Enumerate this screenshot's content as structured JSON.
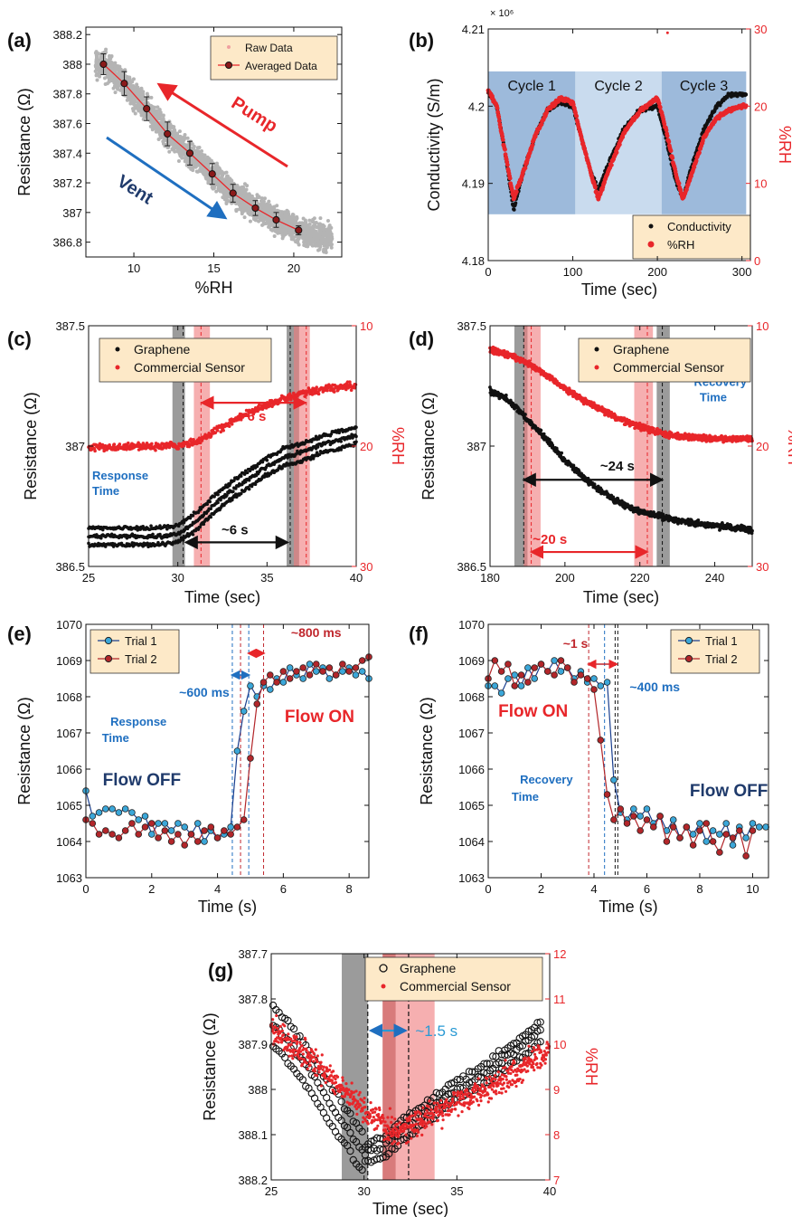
{
  "colors": {
    "black": "#111111",
    "red": "#e8262a",
    "gray": "#b4b4b4",
    "blue": "#1f6fc0",
    "navy": "#1f3a6b",
    "teal": "#2a9ad4",
    "darkred": "#c0272d",
    "legend_bg": "#fde9c8",
    "shade_blue": "#9dbadb",
    "shade_light": "#c9dbee",
    "shade_gray": "#8a8a8a",
    "shade_red": "#f07a7c"
  },
  "chart_data": [
    {
      "panel": "(a)",
      "type": "scatter",
      "xlabel": "%RH",
      "ylabel": "Resistance (Ω)",
      "xlim": [
        7,
        23
      ],
      "ylim": [
        386.7,
        388.25
      ],
      "xticks": [
        10,
        15,
        20
      ],
      "yticks": [
        386.8,
        387,
        387.2,
        387.4,
        387.6,
        387.8,
        388,
        388.2
      ],
      "legend": [
        "Raw Data",
        "Averaged Data"
      ],
      "annotations": [
        "Pump",
        "Vent"
      ],
      "raw_band": {
        "x": [
          7.5,
          22.5
        ],
        "y_center": [
          388.0,
          386.87
        ]
      },
      "series": [
        {
          "name": "Averaged Data",
          "x": [
            8.1,
            9.4,
            10.8,
            12.1,
            13.5,
            14.9,
            16.2,
            17.6,
            18.9,
            20.3
          ],
          "y": [
            388.0,
            387.87,
            387.7,
            387.53,
            387.4,
            387.26,
            387.13,
            387.03,
            386.95,
            386.88
          ],
          "err": [
            0.07,
            0.08,
            0.08,
            0.08,
            0.08,
            0.07,
            0.06,
            0.05,
            0.05,
            0.03
          ]
        }
      ]
    },
    {
      "panel": "(b)",
      "type": "line",
      "xlabel": "Time (sec)",
      "ylabel": "Conductivity (S/m)",
      "y2label": "%RH",
      "xlim": [
        0,
        310
      ],
      "ylim": [
        4.18,
        4.21
      ],
      "y2lim": [
        0,
        30
      ],
      "xticks": [
        0,
        100,
        200,
        300
      ],
      "yticks": [
        4.18,
        4.19,
        4.2,
        4.21
      ],
      "ytick_labels": [
        "4.18",
        "4.19",
        "4.2",
        "4.21"
      ],
      "y2ticks": [
        0,
        10,
        20,
        30
      ],
      "multiplier": "× 10⁶",
      "cycles": [
        "Cycle 1",
        "Cycle 2",
        "Cycle 3"
      ],
      "legend": [
        "Conductivity",
        "%RH"
      ],
      "series": [
        {
          "name": "Conductivity",
          "x": [
            0,
            10,
            20,
            30,
            40,
            55,
            70,
            85,
            100,
            110,
            120,
            130,
            140,
            160,
            180,
            200,
            210,
            220,
            230,
            240,
            255,
            270,
            285,
            300
          ],
          "y": [
            4.202,
            4.2,
            4.194,
            4.1865,
            4.191,
            4.196,
            4.1995,
            4.2005,
            4.2,
            4.196,
            4.192,
            4.189,
            4.192,
            4.197,
            4.1995,
            4.2,
            4.196,
            4.191,
            4.188,
            4.192,
            4.197,
            4.2,
            4.2015,
            4.2015
          ]
        },
        {
          "name": "%RH",
          "x": [
            0,
            10,
            20,
            30,
            40,
            55,
            70,
            85,
            100,
            110,
            120,
            130,
            140,
            160,
            180,
            200,
            210,
            220,
            230,
            240,
            255,
            270,
            285,
            300
          ],
          "y": [
            22,
            20,
            14,
            8,
            11,
            16,
            19.5,
            21,
            20.5,
            16,
            12,
            8,
            11,
            16.5,
            19.5,
            21,
            17,
            12,
            8,
            11,
            16,
            18.5,
            19.5,
            20
          ]
        }
      ]
    },
    {
      "panel": "(c)",
      "type": "scatter",
      "xlabel": "Time (sec)",
      "ylabel": "Resistance (Ω)",
      "y2label": "%RH",
      "xlim": [
        25,
        40
      ],
      "ylim": [
        386.5,
        387.5
      ],
      "y2lim": [
        30,
        10
      ],
      "xticks": [
        25,
        30,
        35,
        40
      ],
      "yticks": [
        386.5,
        387,
        387.5
      ],
      "y2ticks": [
        10,
        20,
        30
      ],
      "legend": [
        "Graphene",
        "Commercial Sensor"
      ],
      "annotations": [
        "~6 s",
        "~6 s",
        "Response",
        "Time"
      ],
      "series": [
        {
          "name": "Graphene",
          "x": [
            25,
            27,
            29,
            30,
            31,
            32,
            33,
            34,
            35,
            36,
            37,
            38,
            39,
            40
          ],
          "y": [
            386.64,
            386.64,
            386.64,
            386.65,
            386.7,
            386.77,
            386.83,
            386.88,
            386.93,
            386.97,
            386.99,
            387.02,
            387.04,
            387.06
          ]
        },
        {
          "name": "Commercial Sensor",
          "x": [
            25,
            27,
            29,
            30,
            31,
            32,
            33,
            34,
            35,
            36,
            37,
            38,
            39,
            40
          ],
          "y": [
            20.1,
            20.1,
            20.0,
            20.0,
            19.6,
            18.8,
            18.0,
            17.2,
            16.6,
            16.0,
            15.6,
            15.3,
            15.1,
            15.0
          ]
        }
      ]
    },
    {
      "panel": "(d)",
      "type": "scatter",
      "xlabel": "Time (sec)",
      "ylabel": "Resistance (Ω)",
      "y2label": "%RH",
      "xlim": [
        180,
        250
      ],
      "ylim": [
        386.5,
        387.5
      ],
      "y2lim": [
        30,
        10
      ],
      "xticks": [
        180,
        200,
        220,
        240
      ],
      "yticks": [
        386.5,
        387,
        387.5
      ],
      "y2ticks": [
        10,
        20,
        30
      ],
      "legend": [
        "Graphene",
        "Commercial Sensor"
      ],
      "annotations": [
        "~24 s",
        "~20 s",
        "Recovery",
        "Time"
      ],
      "series": [
        {
          "name": "Graphene",
          "x": [
            180,
            185,
            190,
            195,
            200,
            205,
            210,
            215,
            220,
            225,
            230,
            235,
            240,
            245,
            250
          ],
          "y": [
            387.23,
            387.19,
            387.11,
            387.03,
            386.94,
            386.87,
            386.81,
            386.76,
            386.73,
            386.71,
            386.69,
            386.68,
            386.67,
            386.66,
            386.65
          ]
        },
        {
          "name": "Commercial Sensor",
          "x": [
            180,
            185,
            190,
            195,
            200,
            205,
            210,
            215,
            220,
            225,
            230,
            235,
            240,
            245,
            250
          ],
          "y": [
            12.0,
            12.4,
            13.1,
            14.1,
            15.2,
            16.2,
            17.0,
            17.8,
            18.4,
            18.9,
            19.2,
            19.3,
            19.4,
            19.4,
            19.4
          ]
        }
      ]
    },
    {
      "panel": "(e)",
      "type": "line",
      "xlabel": "Time (s)",
      "ylabel": "Resistance (Ω)",
      "xlim": [
        0,
        8.6
      ],
      "ylim": [
        1063,
        1070
      ],
      "xticks": [
        0,
        2,
        4,
        6,
        8
      ],
      "yticks": [
        1063,
        1064,
        1065,
        1066,
        1067,
        1068,
        1069,
        1070
      ],
      "legend": [
        "Trial 1",
        "Trial 2"
      ],
      "annotations": [
        "~600 ms",
        "~800 ms",
        "Response",
        "Time",
        "Flow OFF",
        "Flow ON"
      ],
      "series": [
        {
          "name": "Trial 1",
          "x": [
            0,
            0.2,
            0.4,
            0.6,
            0.8,
            1.0,
            1.2,
            1.4,
            1.6,
            1.8,
            2.0,
            2.2,
            2.4,
            2.6,
            2.8,
            3.0,
            3.2,
            3.4,
            3.6,
            3.8,
            4.0,
            4.2,
            4.4,
            4.6,
            4.8,
            5.0,
            5.2,
            5.4,
            5.6,
            5.8,
            6.0,
            6.2,
            6.4,
            6.6,
            6.8,
            7.0,
            7.2,
            7.4,
            7.6,
            7.8,
            8.0,
            8.2,
            8.4,
            8.6
          ],
          "y": [
            1065.4,
            1064.7,
            1064.8,
            1064.9,
            1064.9,
            1064.8,
            1064.9,
            1064.8,
            1064.6,
            1064.7,
            1064.2,
            1064.5,
            1064.5,
            1064.3,
            1064.5,
            1064.4,
            1064.2,
            1064.5,
            1064.0,
            1064.3,
            1064.1,
            1064.2,
            1064.4,
            1066.5,
            1067.6,
            1068.3,
            1068.0,
            1068.3,
            1068.2,
            1068.5,
            1068.4,
            1068.8,
            1068.6,
            1068.5,
            1068.9,
            1068.7,
            1068.8,
            1068.5,
            1068.6,
            1068.7,
            1068.8,
            1068.6,
            1068.7,
            1068.5
          ]
        },
        {
          "name": "Trial 2",
          "x": [
            0,
            0.2,
            0.4,
            0.6,
            0.8,
            1.0,
            1.2,
            1.4,
            1.6,
            1.8,
            2.0,
            2.2,
            2.4,
            2.6,
            2.8,
            3.0,
            3.2,
            3.4,
            3.6,
            3.8,
            4.0,
            4.2,
            4.4,
            4.6,
            4.8,
            5.0,
            5.2,
            5.4,
            5.6,
            5.8,
            6.0,
            6.2,
            6.4,
            6.6,
            6.8,
            7.0,
            7.2,
            7.4,
            7.6,
            7.8,
            8.0,
            8.2,
            8.4,
            8.6
          ],
          "y": [
            1064.6,
            1064.5,
            1064.2,
            1064.3,
            1064.2,
            1064.1,
            1064.3,
            1064.5,
            1064.2,
            1064.4,
            1064.5,
            1064.1,
            1064.3,
            1064.0,
            1064.2,
            1063.9,
            1064.2,
            1064.0,
            1064.3,
            1064.4,
            1064.1,
            1064.3,
            1064.2,
            1064.4,
            1064.6,
            1066.3,
            1067.8,
            1068.4,
            1068.6,
            1068.4,
            1068.7,
            1068.5,
            1068.7,
            1068.8,
            1068.6,
            1068.9,
            1068.7,
            1068.8,
            1068.6,
            1068.9,
            1068.7,
            1068.8,
            1069.0,
            1069.1
          ]
        }
      ]
    },
    {
      "panel": "(f)",
      "type": "line",
      "xlabel": "Time (s)",
      "ylabel": "Resistance (Ω)",
      "xlim": [
        0,
        10.6
      ],
      "ylim": [
        1063,
        1070
      ],
      "xticks": [
        0,
        2,
        4,
        6,
        8,
        10
      ],
      "yticks": [
        1063,
        1064,
        1065,
        1066,
        1067,
        1068,
        1069,
        1070
      ],
      "legend": [
        "Trial 1",
        "Trial 2"
      ],
      "annotations": [
        "~1 s",
        "~400 ms",
        "Recovery",
        "Time",
        "Flow ON",
        "Flow OFF"
      ],
      "series": [
        {
          "name": "Trial 1",
          "x": [
            0,
            0.25,
            0.5,
            0.75,
            1.0,
            1.25,
            1.5,
            1.75,
            2.0,
            2.25,
            2.5,
            2.75,
            3.0,
            3.25,
            3.5,
            3.75,
            4.0,
            4.25,
            4.5,
            4.75,
            5.0,
            5.25,
            5.5,
            5.75,
            6.0,
            6.25,
            6.5,
            6.75,
            7.0,
            7.25,
            7.5,
            7.75,
            8.0,
            8.25,
            8.5,
            8.75,
            9.0,
            9.25,
            9.5,
            9.75,
            10.0,
            10.25,
            10.5
          ],
          "y": [
            1068.3,
            1068.3,
            1068.1,
            1068.5,
            1068.6,
            1068.3,
            1068.8,
            1068.5,
            1068.9,
            1068.7,
            1069.0,
            1068.7,
            1068.8,
            1068.5,
            1068.7,
            1068.4,
            1068.5,
            1068.3,
            1068.4,
            1065.7,
            1064.8,
            1064.6,
            1064.9,
            1064.7,
            1064.9,
            1064.5,
            1064.7,
            1064.3,
            1064.6,
            1064.1,
            1064.4,
            1064.2,
            1064.5,
            1064.0,
            1064.3,
            1064.2,
            1064.5,
            1063.9,
            1064.4,
            1064.1,
            1064.5,
            1064.4,
            1064.4
          ]
        },
        {
          "name": "Trial 2",
          "x": [
            0,
            0.25,
            0.5,
            0.75,
            1.0,
            1.25,
            1.5,
            1.75,
            2.0,
            2.25,
            2.5,
            2.75,
            3.0,
            3.25,
            3.5,
            3.75,
            4.0,
            4.25,
            4.5,
            4.75,
            5.0,
            5.25,
            5.5,
            5.75,
            6.0,
            6.25,
            6.5,
            6.75,
            7.0,
            7.25,
            7.5,
            7.75,
            8.0,
            8.25,
            8.5,
            8.75,
            9.0,
            9.25,
            9.5,
            9.75,
            10.0
          ],
          "y": [
            1068.5,
            1069.0,
            1068.7,
            1068.9,
            1068.3,
            1068.6,
            1068.4,
            1068.8,
            1068.9,
            1068.7,
            1068.6,
            1069.0,
            1068.8,
            1068.4,
            1068.6,
            1068.5,
            1068.2,
            1066.8,
            1065.3,
            1064.6,
            1064.9,
            1064.5,
            1064.7,
            1064.3,
            1064.6,
            1064.4,
            1064.7,
            1064.0,
            1064.4,
            1064.1,
            1064.4,
            1063.9,
            1064.3,
            1064.5,
            1064.0,
            1063.7,
            1064.2,
            1064.1,
            1064.3,
            1063.6,
            1064.3
          ]
        }
      ]
    },
    {
      "panel": "(g)",
      "type": "scatter",
      "xlabel": "Time (sec)",
      "ylabel": "Resistance (Ω)",
      "y2label": "%RH",
      "xlim": [
        25,
        40
      ],
      "ylim": [
        388.2,
        387.7
      ],
      "y2lim": [
        7,
        12
      ],
      "xticks": [
        25,
        30,
        35,
        40
      ],
      "yticks": [
        387.7,
        387.8,
        387.9,
        388,
        388.1,
        388.2
      ],
      "y2ticks": [
        7,
        8,
        9,
        10,
        11,
        12
      ],
      "legend": [
        "Graphene",
        "Commercial Sensor"
      ],
      "annotations": [
        "~1.5 s"
      ],
      "series": [
        {
          "name": "Graphene",
          "x": [
            25,
            26,
            27,
            28,
            29,
            30,
            31,
            32,
            33,
            34,
            35,
            36,
            37,
            38,
            39,
            40
          ],
          "y": [
            387.85,
            387.9,
            387.95,
            388.02,
            388.08,
            388.14,
            388.13,
            388.09,
            388.06,
            388.03,
            388.0,
            387.98,
            387.95,
            387.92,
            387.89,
            387.85
          ]
        },
        {
          "name": "Commercial Sensor",
          "x": [
            25,
            26,
            27,
            28,
            29,
            30,
            31,
            32,
            33,
            34,
            35,
            36,
            37,
            38,
            39,
            40
          ],
          "y": [
            10.4,
            10.0,
            9.7,
            9.3,
            8.9,
            8.5,
            8.2,
            8.1,
            8.3,
            8.5,
            8.7,
            8.9,
            9.1,
            9.3,
            9.6,
            9.9
          ]
        }
      ]
    }
  ]
}
